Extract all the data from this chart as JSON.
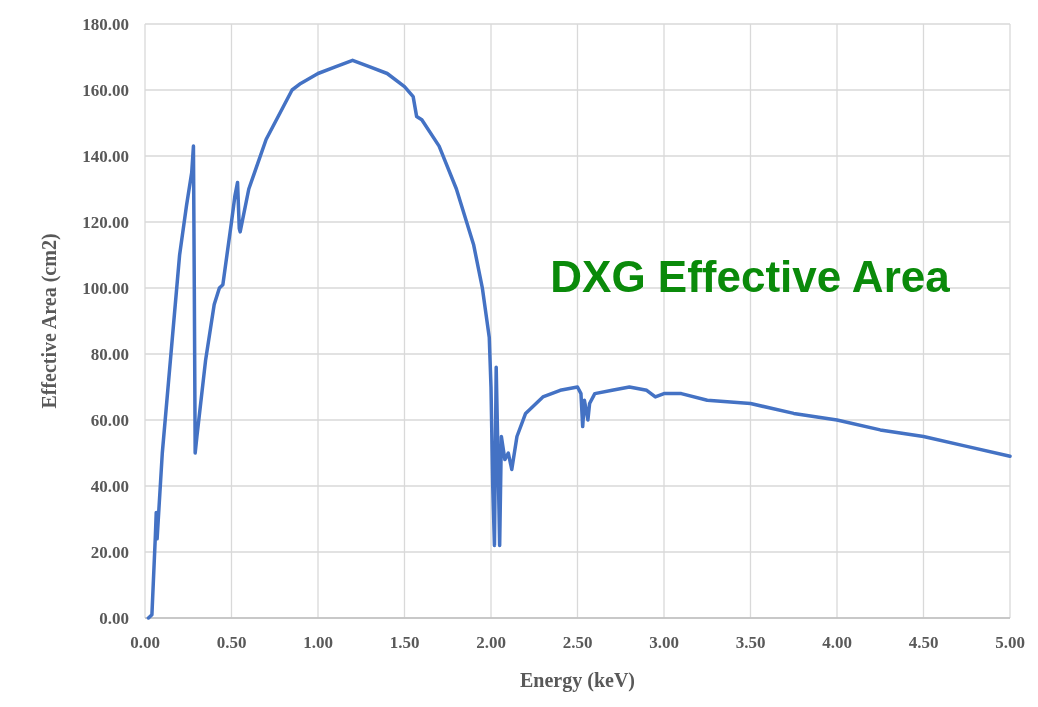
{
  "chart_data": {
    "type": "line",
    "xlabel": "Energy (keV)",
    "ylabel": "Effective Area (cm2)",
    "annotations": [
      "DXG Effective Area"
    ],
    "xlim": [
      0,
      5
    ],
    "ylim": [
      0,
      180
    ],
    "xticks": [
      {
        "value": 0,
        "label": "0.00"
      },
      {
        "value": 0.5,
        "label": "0.50"
      },
      {
        "value": 1,
        "label": "1.00"
      },
      {
        "value": 1.5,
        "label": "1.50"
      },
      {
        "value": 2,
        "label": "2.00"
      },
      {
        "value": 2.5,
        "label": "2.50"
      },
      {
        "value": 3,
        "label": "3.00"
      },
      {
        "value": 3.5,
        "label": "3.50"
      },
      {
        "value": 4,
        "label": "4.00"
      },
      {
        "value": 4.5,
        "label": "4.50"
      },
      {
        "value": 5,
        "label": "5.00"
      }
    ],
    "yticks": [
      {
        "value": 0,
        "label": "0.00"
      },
      {
        "value": 20,
        "label": "20.00"
      },
      {
        "value": 40,
        "label": "40.00"
      },
      {
        "value": 60,
        "label": "60.00"
      },
      {
        "value": 80,
        "label": "80.00"
      },
      {
        "value": 100,
        "label": "100.00"
      },
      {
        "value": 120,
        "label": "120.00"
      },
      {
        "value": 140,
        "label": "140.00"
      },
      {
        "value": 160,
        "label": "160.00"
      },
      {
        "value": 180,
        "label": "180.00"
      }
    ],
    "grid": true,
    "marker": "none",
    "line_style": "solid",
    "series": [
      {
        "color": "#4472c4",
        "x": [
          0.02,
          0.04,
          0.06,
          0.065,
          0.07,
          0.1,
          0.15,
          0.2,
          0.24,
          0.27,
          0.28,
          0.285,
          0.29,
          0.3,
          0.35,
          0.4,
          0.43,
          0.45,
          0.5,
          0.52,
          0.535,
          0.545,
          0.55,
          0.6,
          0.7,
          0.8,
          0.85,
          0.9,
          1.0,
          1.1,
          1.2,
          1.3,
          1.4,
          1.5,
          1.55,
          1.57,
          1.6,
          1.7,
          1.8,
          1.9,
          1.95,
          1.99,
          2.0,
          2.01,
          2.02,
          2.03,
          2.04,
          2.05,
          2.06,
          2.08,
          2.1,
          2.12,
          2.15,
          2.2,
          2.3,
          2.4,
          2.5,
          2.52,
          2.53,
          2.54,
          2.56,
          2.57,
          2.6,
          2.7,
          2.8,
          2.9,
          2.95,
          3.0,
          3.1,
          3.25,
          3.5,
          3.75,
          4.0,
          4.25,
          4.5,
          4.75,
          5.0
        ],
        "values": [
          0,
          1,
          25,
          32,
          24,
          50,
          80,
          110,
          125,
          135,
          143,
          100,
          50,
          55,
          78,
          95,
          100,
          101,
          120,
          128,
          132,
          118,
          117,
          130,
          145,
          155,
          160,
          162,
          165,
          167,
          169,
          167,
          165,
          161,
          158,
          152,
          151,
          143,
          130,
          113,
          100,
          85,
          70,
          40,
          22,
          76,
          50,
          22,
          55,
          48,
          50,
          45,
          55,
          62,
          67,
          69,
          70,
          68,
          58,
          66,
          60,
          65,
          68,
          69,
          70,
          69,
          67,
          68,
          68,
          66,
          65,
          62,
          60,
          57,
          55,
          52,
          49
        ]
      }
    ]
  }
}
